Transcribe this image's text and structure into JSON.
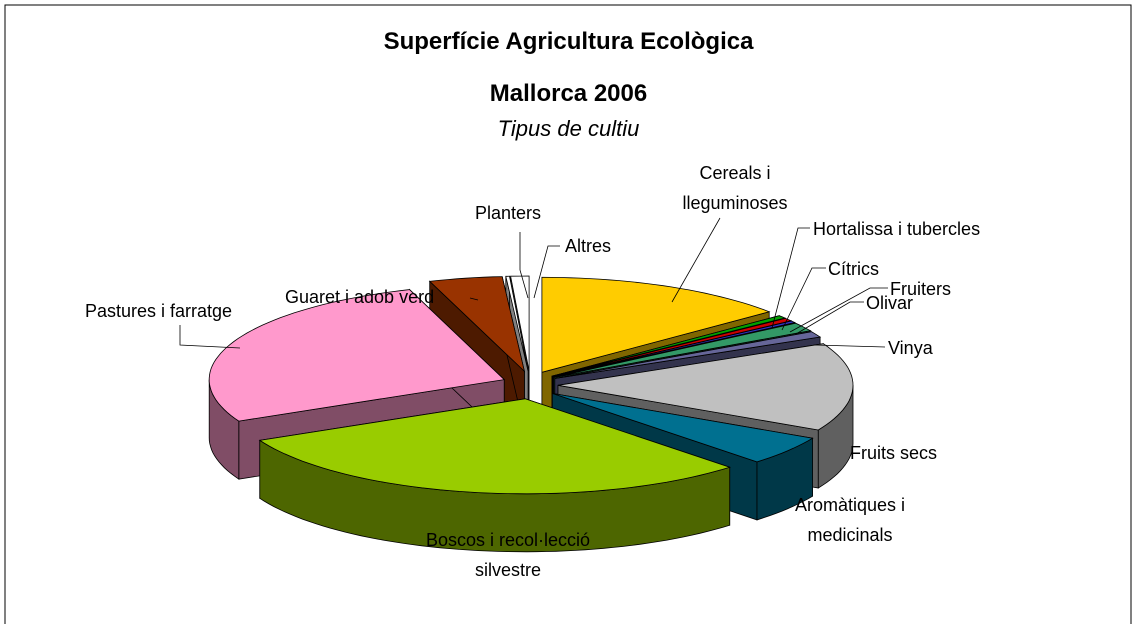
{
  "chart_data": {
    "type": "pie3d",
    "title": [
      "Superfície Agricultura Ecològica",
      "Mallorca 2006"
    ],
    "subtitle": "Tipus de cultiu",
    "categories": [
      "Cereals i lleguminoses",
      "Hortalissa i tubercles",
      "Cítrics",
      "Fruiters",
      "Olivar",
      "Vinya",
      "Fruits secs",
      "Aromàtiques i medicinals",
      "Boscos i recol·lecció silvestre",
      "Pastures i farratge",
      "Guaret i adob verd",
      "Planters",
      "Altres"
    ],
    "values": [
      14,
      0.5,
      0.5,
      0.3,
      1.5,
      1,
      15,
      5,
      30,
      27,
      4,
      0.2,
      1
    ],
    "colors": [
      "#ffcc00",
      "#00a000",
      "#cc0000",
      "#3333cc",
      "#339966",
      "#666699",
      "#c0c0c0",
      "#007090",
      "#99cc00",
      "#ff99cc",
      "#993300",
      "#ffffff",
      "#ffffff"
    ]
  }
}
